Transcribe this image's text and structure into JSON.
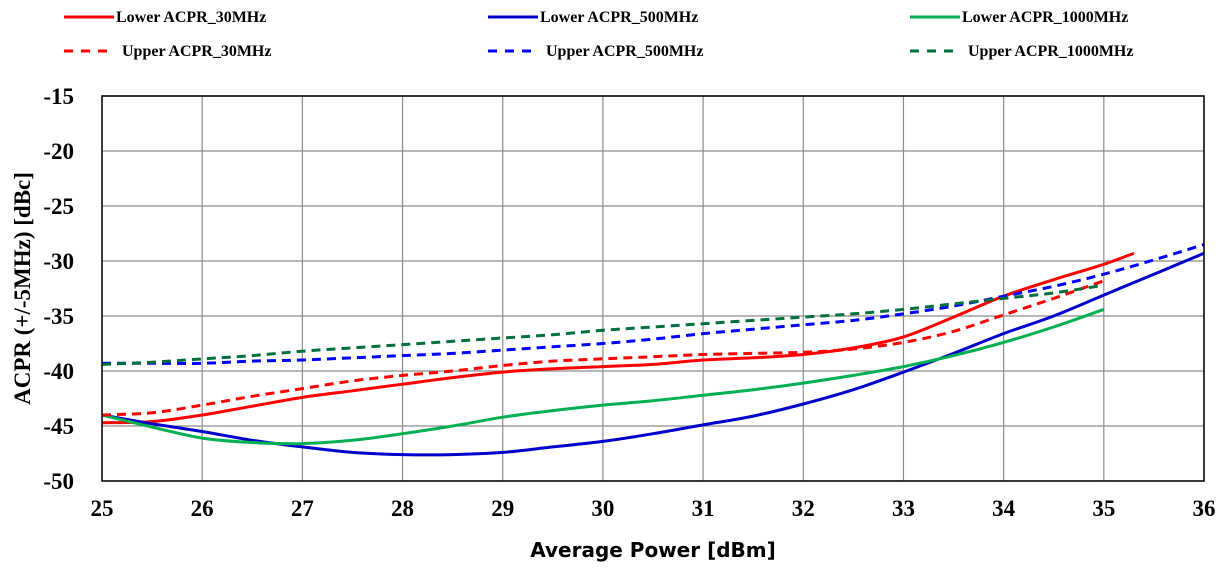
{
  "chart_data": {
    "type": "line",
    "xlabel": "Average Power [dBm]",
    "ylabel": "ACPR (+/-5MHz) [dBc]",
    "xlim": [
      25,
      36
    ],
    "ylim": [
      -50,
      -15
    ],
    "x_ticks": [
      "25",
      "26",
      "27",
      "28",
      "29",
      "30",
      "31",
      "32",
      "33",
      "34",
      "35",
      "36"
    ],
    "y_ticks": [
      "-15",
      "-20",
      "-25",
      "-30",
      "-35",
      "-40",
      "-45",
      "-50"
    ],
    "grid": true,
    "legend_position": "top",
    "series": [
      {
        "name": "Lower ACPR_30MHz",
        "color": "#ff0000",
        "dash": false,
        "x": [
          25,
          25.5,
          26,
          26.5,
          27,
          27.5,
          28,
          28.5,
          29,
          29.5,
          30,
          30.5,
          31,
          31.5,
          32,
          32.5,
          33,
          33.5,
          34,
          34.5,
          35,
          35.3
        ],
        "y": [
          -44.7,
          -44.6,
          -44.0,
          -43.2,
          -42.4,
          -41.8,
          -41.2,
          -40.6,
          -40.1,
          -39.8,
          -39.6,
          -39.4,
          -39.0,
          -38.8,
          -38.5,
          -37.9,
          -36.9,
          -35.1,
          -33.2,
          -31.7,
          -30.3,
          -29.3
        ]
      },
      {
        "name": "Lower ACPR_500MHz",
        "color": "#0000cc",
        "dash": false,
        "x": [
          25,
          25.5,
          26,
          26.5,
          27,
          27.5,
          28,
          28.5,
          29,
          29.5,
          30,
          30.5,
          31,
          31.5,
          32,
          32.5,
          33,
          33.5,
          34,
          34.5,
          35,
          35.5,
          36
        ],
        "y": [
          -44.0,
          -44.8,
          -45.5,
          -46.3,
          -46.9,
          -47.4,
          -47.6,
          -47.6,
          -47.4,
          -46.9,
          -46.4,
          -45.7,
          -44.9,
          -44.1,
          -43.0,
          -41.7,
          -40.1,
          -38.4,
          -36.6,
          -35.0,
          -33.1,
          -31.2,
          -29.3
        ]
      },
      {
        "name": "Lower ACPR_1000MHz",
        "color": "#00b050",
        "dash": false,
        "x": [
          25,
          25.5,
          26,
          26.5,
          27,
          27.5,
          28,
          28.5,
          29,
          29.5,
          30,
          30.5,
          31,
          31.5,
          32,
          32.5,
          33,
          33.5,
          34,
          34.5,
          35
        ],
        "y": [
          -44.0,
          -45.1,
          -46.1,
          -46.5,
          -46.6,
          -46.3,
          -45.7,
          -45.0,
          -44.2,
          -43.6,
          -43.1,
          -42.7,
          -42.2,
          -41.7,
          -41.1,
          -40.4,
          -39.6,
          -38.6,
          -37.4,
          -36.0,
          -34.4
        ]
      },
      {
        "name": "Upper ACPR_30MHz",
        "color": "#ff0000",
        "dash": true,
        "x": [
          25,
          25.5,
          26,
          26.5,
          27,
          27.5,
          28,
          28.5,
          29,
          29.5,
          30,
          30.5,
          31,
          31.5,
          32,
          32.5,
          33,
          33.5,
          34,
          34.5,
          35
        ],
        "y": [
          -44.0,
          -43.8,
          -43.1,
          -42.3,
          -41.6,
          -40.9,
          -40.4,
          -40.0,
          -39.5,
          -39.1,
          -38.9,
          -38.7,
          -38.5,
          -38.4,
          -38.3,
          -38.0,
          -37.4,
          -36.4,
          -34.9,
          -33.4,
          -31.8
        ]
      },
      {
        "name": "Upper ACPR_500MHz",
        "color": "#0000ff",
        "dash": true,
        "x": [
          25,
          25.5,
          26,
          26.5,
          27,
          27.5,
          28,
          28.5,
          29,
          29.5,
          30,
          30.5,
          31,
          31.5,
          32,
          32.5,
          33,
          33.5,
          34,
          34.5,
          35,
          35.5,
          36
        ],
        "y": [
          -39.3,
          -39.3,
          -39.3,
          -39.1,
          -39.0,
          -38.8,
          -38.6,
          -38.4,
          -38.1,
          -37.8,
          -37.5,
          -37.1,
          -36.6,
          -36.2,
          -35.8,
          -35.4,
          -34.8,
          -34.1,
          -33.2,
          -32.3,
          -31.2,
          -29.9,
          -28.5
        ]
      },
      {
        "name": "Upper ACPR_1000MHz",
        "color": "#00703c",
        "dash": true,
        "x": [
          25,
          25.5,
          26,
          26.5,
          27,
          27.5,
          28,
          28.5,
          29,
          29.5,
          30,
          30.5,
          31,
          31.5,
          32,
          32.5,
          33,
          33.5,
          34,
          34.5,
          35
        ],
        "y": [
          -39.4,
          -39.2,
          -38.9,
          -38.6,
          -38.2,
          -37.9,
          -37.6,
          -37.3,
          -37.0,
          -36.7,
          -36.3,
          -36.0,
          -35.7,
          -35.4,
          -35.1,
          -34.8,
          -34.4,
          -33.9,
          -33.4,
          -32.9,
          -32.2
        ]
      }
    ]
  }
}
